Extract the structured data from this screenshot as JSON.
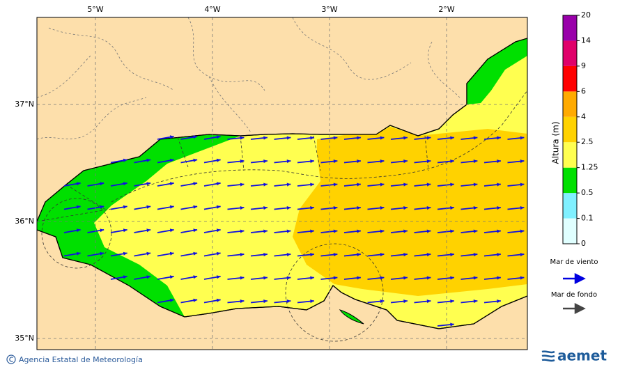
{
  "map": {
    "lon_labels": [
      "5°W",
      "4°W",
      "3°W",
      "2°W"
    ],
    "lat_labels": [
      "37°N",
      "36°N",
      "35°N"
    ]
  },
  "colorbar": {
    "label": "Altura (m)",
    "ticks": [
      0,
      0.1,
      0.5,
      1.25,
      2.5,
      4,
      6,
      9,
      14,
      20
    ],
    "colors": [
      "#e0ffff",
      "#80f0ff",
      "#00e000",
      "#ffff50",
      "#ffd200",
      "#ffaa00",
      "#ff0000",
      "#e0006a",
      "#9900aa"
    ]
  },
  "legend": {
    "wind_sea": "Mar de viento",
    "swell": "Mar de fondo"
  },
  "footer": {
    "copyright": "Agencia Estatal de Meteorología",
    "logo": "aemet"
  }
}
